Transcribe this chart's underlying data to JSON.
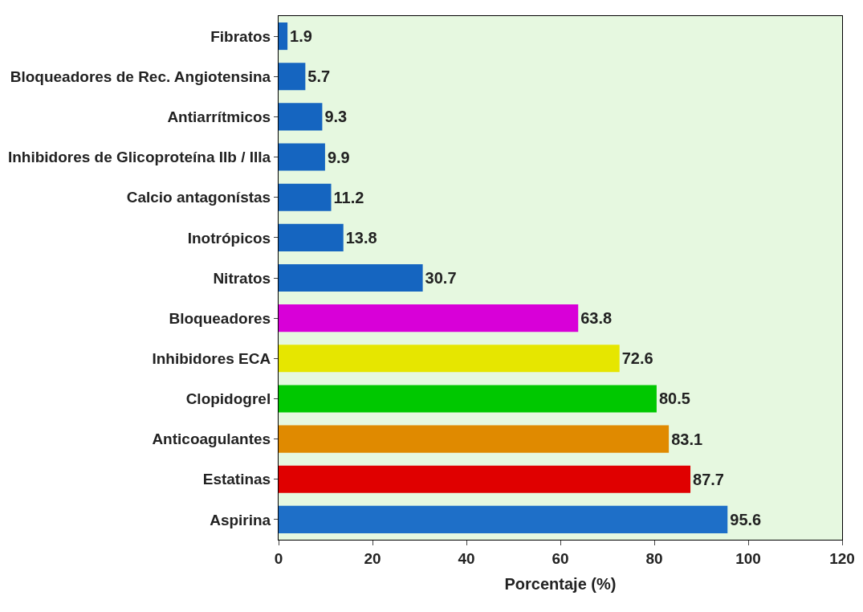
{
  "chart_data": {
    "type": "bar",
    "orientation": "horizontal",
    "xlabel": "Porcentaje (%)",
    "categories": [
      "Fibratos",
      "Bloqueadores de Rec. Angiotensina",
      "Antiarrítmicos",
      "Inhibidores de Glicoproteína IIb / IIIa",
      "Calcio antagonístas",
      "Inotrópicos",
      "Nitratos",
      "Bloqueadores",
      "Inhibidores ECA",
      "Clopidogrel",
      "Anticoagulantes",
      "Estatinas",
      "Aspirina"
    ],
    "values": [
      1.9,
      5.7,
      9.3,
      9.9,
      11.2,
      13.8,
      30.7,
      63.8,
      72.6,
      80.5,
      83.1,
      87.7,
      95.6
    ],
    "colors": [
      "#1565c0",
      "#1565c0",
      "#1565c0",
      "#1565c0",
      "#1565c0",
      "#1565c0",
      "#1565c0",
      "#d800d8",
      "#e6e600",
      "#00c800",
      "#e08a00",
      "#e00000",
      "#1e6fc8"
    ],
    "xlim": [
      0,
      120
    ],
    "xticks": [
      0,
      20,
      40,
      60,
      80,
      100,
      120
    ],
    "data_labels": true,
    "grid": false,
    "legend": false
  }
}
